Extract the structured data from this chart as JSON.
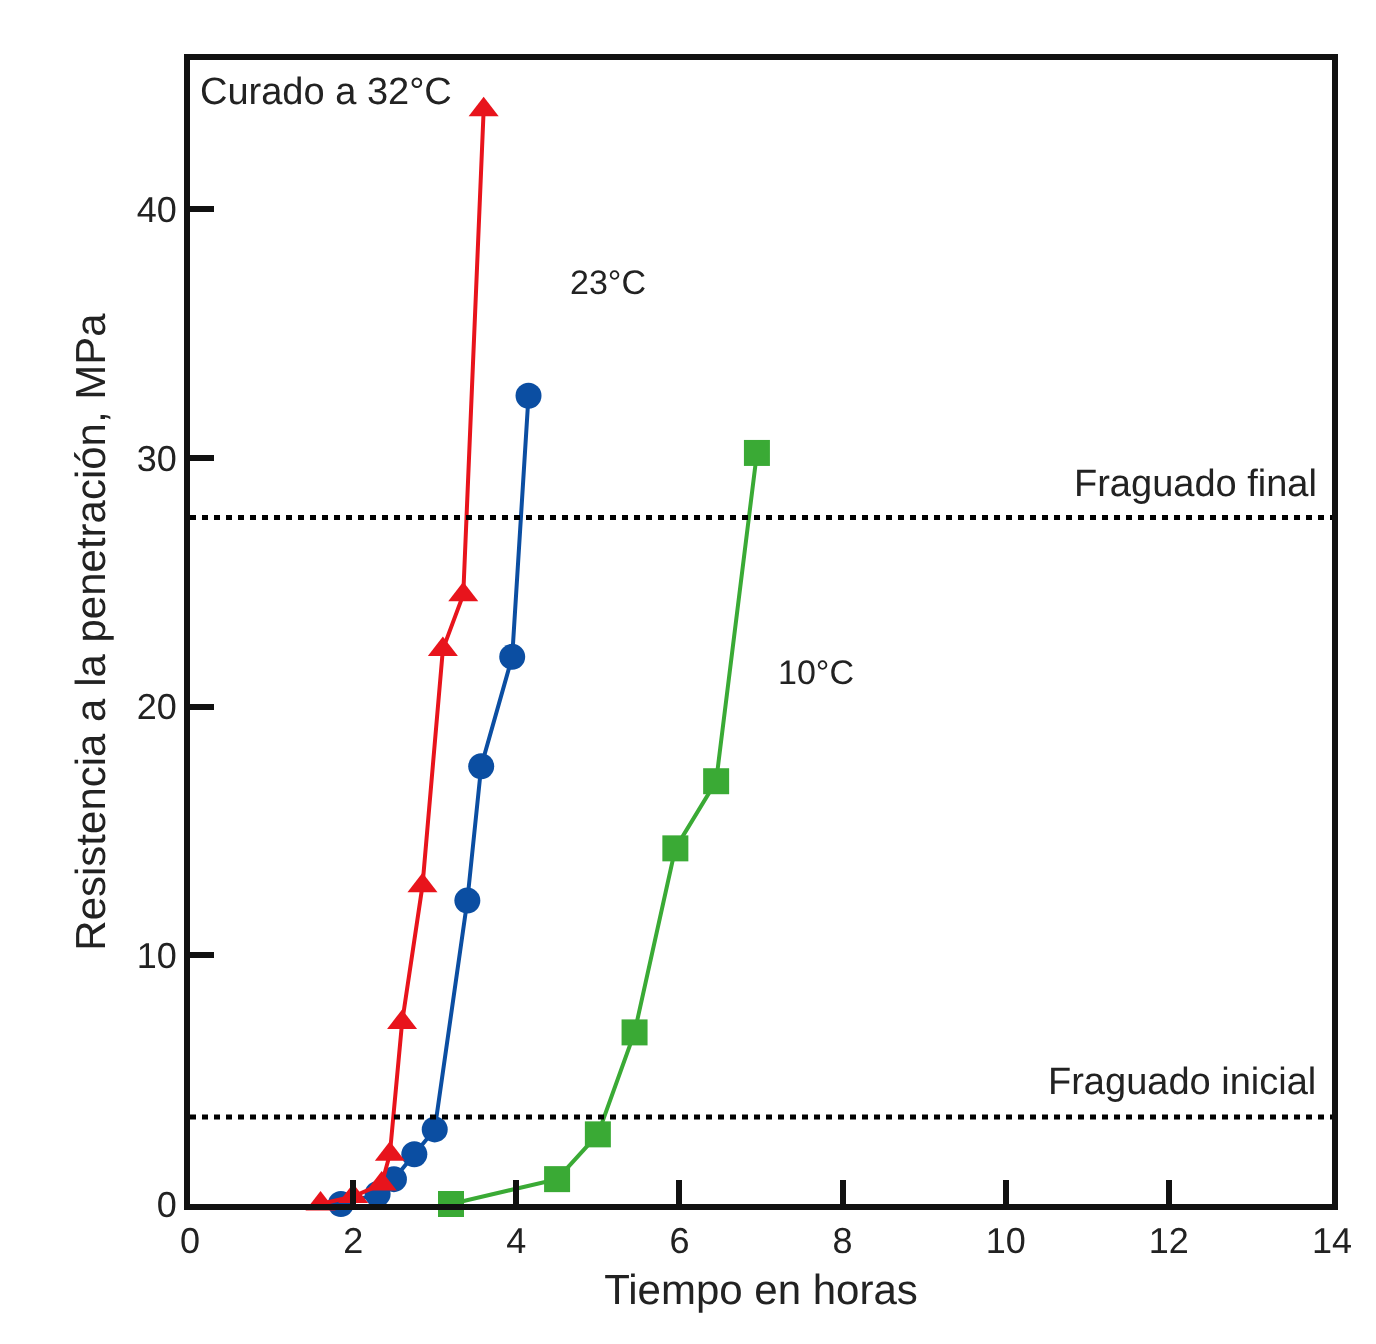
{
  "chart_data": {
    "type": "line",
    "xlabel": "Tiempo en horas",
    "ylabel": "Resistencia a la penetración, MPa",
    "xlim": [
      0,
      14
    ],
    "xticks": [
      0,
      2,
      4,
      6,
      8,
      10,
      12,
      14
    ],
    "ylim": [
      0,
      46
    ],
    "yticks": [
      0,
      10,
      20,
      30,
      40
    ],
    "grid": false,
    "legend": false,
    "line_style": "solid",
    "series": [
      {
        "name": "Curado a 32°C",
        "color": "#e8141c",
        "marker": "triangle",
        "x": [
          1.6,
          2.0,
          2.35,
          2.45,
          2.6,
          2.85,
          3.1,
          3.35,
          3.6
        ],
        "values": [
          0,
          0.3,
          0.8,
          2,
          7.3,
          12.8,
          22.3,
          24.5,
          44
        ]
      },
      {
        "name": "23°C",
        "color": "#0b4ea2",
        "marker": "circle",
        "x": [
          1.85,
          2.3,
          2.5,
          2.75,
          3.0,
          3.4,
          3.57,
          3.95,
          4.15
        ],
        "values": [
          0,
          0.4,
          1,
          2,
          3,
          12.2,
          17.6,
          22,
          32.5
        ]
      },
      {
        "name": "10°C",
        "color": "#3aaa35",
        "marker": "square",
        "x": [
          3.2,
          4.5,
          5.0,
          5.45,
          5.95,
          6.45,
          6.95
        ],
        "values": [
          0,
          1,
          2.8,
          6.9,
          14.3,
          17,
          30.2
        ]
      }
    ],
    "ref_lines": [
      {
        "axis": "y",
        "value": 27.6,
        "label": "Fraguado final",
        "color": "#000000",
        "line_style": "dotted"
      },
      {
        "axis": "y",
        "value": 3.5,
        "label": "Fraguado inicial",
        "color": "#000000",
        "line_style": "dotted"
      }
    ]
  }
}
